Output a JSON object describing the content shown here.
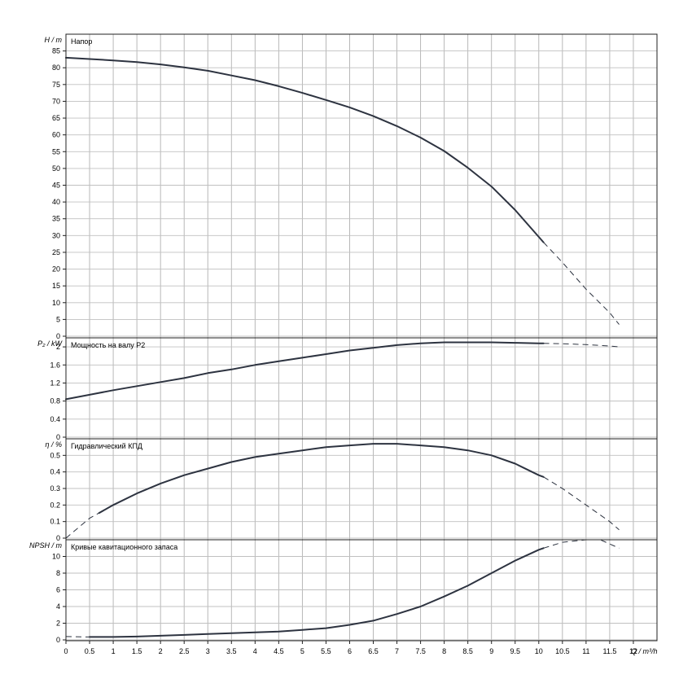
{
  "chart_data": {
    "type": "line",
    "x_axis": {
      "label": "Q / m³/h",
      "min": 0,
      "max": 12.5,
      "step": 0.5,
      "tick_labels": [
        "0",
        "0.5",
        "1",
        "1.5",
        "2",
        "2.5",
        "3",
        "3.5",
        "4",
        "4.5",
        "5",
        "5.5",
        "6",
        "6.5",
        "7",
        "7.5",
        "8",
        "8.5",
        "9",
        "9.5",
        "10",
        "10.5",
        "11",
        "11.5",
        "12"
      ]
    },
    "grid": true,
    "panels": [
      {
        "id": "head",
        "title": "Напор",
        "y_label": "H / m",
        "ylim": [
          0,
          90
        ],
        "y_ticks": [
          0,
          5,
          10,
          15,
          20,
          25,
          30,
          35,
          40,
          45,
          50,
          55,
          60,
          65,
          70,
          75,
          80,
          85
        ],
        "y_tick_labels": [
          "0",
          "5",
          "10",
          "15",
          "20",
          "25",
          "30",
          "35",
          "40",
          "45",
          "50",
          "55",
          "60",
          "65",
          "70",
          "75",
          "80",
          "85"
        ],
        "series": [
          {
            "x": [
              0,
              0.5,
              1,
              1.5,
              2,
              2.5,
              3,
              3.5,
              4,
              4.5,
              5,
              5.5,
              6,
              6.5,
              7,
              7.5,
              8,
              8.5,
              9,
              9.5,
              10,
              10.1,
              10.5,
              11,
              11.5,
              11.7
            ],
            "y": [
              83,
              82.6,
              82.2,
              81.7,
              81,
              80.1,
              79.1,
              77.7,
              76.3,
              74.5,
              72.5,
              70.4,
              68.2,
              65.6,
              62.6,
              59.2,
              55.2,
              50.2,
              44.6,
              37.6,
              29.6,
              28,
              22,
              14,
              7,
              3.5
            ],
            "solid_until_x": 10.1
          }
        ]
      },
      {
        "id": "power",
        "title": "Мощность на валу P2",
        "y_label": "P₂ / kW",
        "ylim": [
          0,
          2.2
        ],
        "y_ticks": [
          0,
          0.4,
          0.8,
          1.2,
          1.6,
          2
        ],
        "y_tick_labels": [
          "0",
          "0.4",
          "0.8",
          "1.2",
          "1.6",
          "2"
        ],
        "series": [
          {
            "x": [
              0,
              0.5,
              1,
              1.5,
              2,
              2.5,
              3,
              3.5,
              4,
              4.5,
              5,
              5.5,
              6,
              6.5,
              7,
              7.5,
              8,
              8.5,
              9,
              9.5,
              10,
              10.1,
              10.5,
              11,
              11.5,
              11.7
            ],
            "y": [
              0.84,
              0.94,
              1.04,
              1.13,
              1.22,
              1.31,
              1.42,
              1.5,
              1.6,
              1.68,
              1.76,
              1.84,
              1.92,
              1.98,
              2.04,
              2.08,
              2.1,
              2.1,
              2.1,
              2.09,
              2.08,
              2.08,
              2.07,
              2.05,
              2.02,
              2.0
            ],
            "solid_until_x": 10.1
          }
        ]
      },
      {
        "id": "efficiency",
        "title": "Гидравлический КПД",
        "y_label": "η / %",
        "ylim": [
          0,
          0.6
        ],
        "y_ticks": [
          0,
          0.1,
          0.2,
          0.3,
          0.4,
          0.5
        ],
        "y_tick_labels": [
          "0",
          "0.1",
          "0.2",
          "0.3",
          "0.4",
          "0.5"
        ],
        "series": [
          {
            "x": [
              0,
              0.5,
              1,
              1.5,
              2,
              2.5,
              3,
              3.5,
              4,
              4.5,
              5,
              5.5,
              6,
              6.5,
              7,
              7.5,
              8,
              8.5,
              9,
              9.5,
              10,
              10.1,
              10.5,
              11,
              11.5,
              11.7
            ],
            "y": [
              0,
              0.12,
              0.2,
              0.27,
              0.33,
              0.38,
              0.42,
              0.46,
              0.49,
              0.51,
              0.53,
              0.55,
              0.56,
              0.57,
              0.57,
              0.56,
              0.55,
              0.53,
              0.5,
              0.45,
              0.38,
              0.37,
              0.3,
              0.2,
              0.1,
              0.05
            ],
            "solid_from_x": 0.7,
            "solid_until_x": 10.1
          }
        ]
      },
      {
        "id": "npsh",
        "title": "Кривые кавитационного запаса",
        "y_label": "NPSH / m",
        "ylim": [
          0,
          12
        ],
        "y_ticks": [
          0,
          2,
          4,
          6,
          8,
          10
        ],
        "y_tick_labels": [
          "0",
          "2",
          "4",
          "6",
          "8",
          "10"
        ],
        "series": [
          {
            "x": [
              0,
              0.5,
              1,
              1.5,
              2,
              2.5,
              3,
              3.5,
              4,
              4.5,
              5,
              5.5,
              6,
              6.5,
              7,
              7.5,
              8,
              8.5,
              9,
              9.5,
              10,
              10.1,
              10.5,
              11,
              11.3,
              11.7
            ],
            "y": [
              0.4,
              0.35,
              0.35,
              0.4,
              0.5,
              0.6,
              0.7,
              0.8,
              0.9,
              1.0,
              1.2,
              1.4,
              1.8,
              2.3,
              3.1,
              4.0,
              5.2,
              6.5,
              8.0,
              9.5,
              10.8,
              11.0,
              11.7,
              12.0,
              12.0,
              11.0
            ],
            "solid_from_x": 0.5,
            "solid_until_x": 10.1
          }
        ]
      }
    ]
  }
}
